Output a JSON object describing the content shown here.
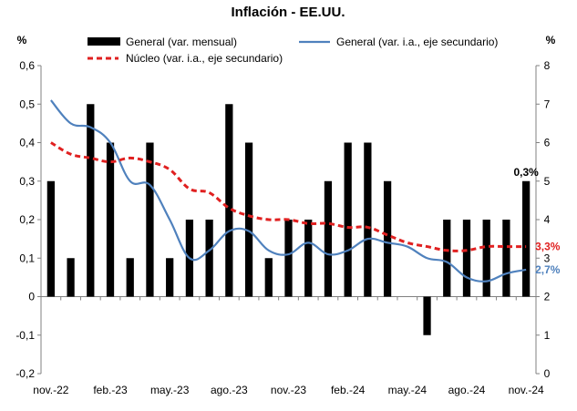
{
  "chart_data": {
    "type": "bar+line",
    "title": "Inflación - EE.UU.",
    "y_left_unit": "%",
    "y_right_unit": "%",
    "y_left_lim": [
      -0.2,
      0.6
    ],
    "y_left_ticks": [
      "0,6",
      "0,5",
      "0,4",
      "0,3",
      "0,2",
      "0,1",
      "0",
      "-0,1",
      "-0,2"
    ],
    "y_right_lim": [
      0,
      8
    ],
    "y_right_ticks": [
      "8",
      "7",
      "6",
      "5",
      "4",
      "3",
      "2",
      "1",
      "0"
    ],
    "x_tick_labels": [
      "nov.-22",
      "feb.-23",
      "may.-23",
      "ago.-23",
      "nov.-23",
      "feb.-24",
      "may.-24",
      "ago.-24",
      "nov.-24"
    ],
    "months": [
      "2022-11",
      "2022-12",
      "2023-01",
      "2023-02",
      "2023-03",
      "2023-04",
      "2023-05",
      "2023-06",
      "2023-07",
      "2023-08",
      "2023-09",
      "2023-10",
      "2023-11",
      "2023-12",
      "2024-01",
      "2024-02",
      "2024-03",
      "2024-04",
      "2024-05",
      "2024-06",
      "2024-07",
      "2024-08",
      "2024-09",
      "2024-10",
      "2024-11"
    ],
    "grid": false,
    "legend_position": "top",
    "series": [
      {
        "name": "General (var. mensual)",
        "type": "bar",
        "axis": "left",
        "color": "#000000",
        "values": [
          0.3,
          0.1,
          0.5,
          0.4,
          0.1,
          0.4,
          0.1,
          0.2,
          0.2,
          0.5,
          0.4,
          0.1,
          0.2,
          0.2,
          0.3,
          0.4,
          0.4,
          0.3,
          0.0,
          -0.1,
          0.2,
          0.2,
          0.2,
          0.2,
          0.3
        ]
      },
      {
        "name": "General (var. i.a., eje secundario)",
        "type": "line",
        "axis": "right",
        "color": "#4f81bd",
        "values": [
          7.1,
          6.5,
          6.4,
          6.0,
          5.0,
          4.9,
          4.0,
          3.0,
          3.2,
          3.7,
          3.7,
          3.2,
          3.1,
          3.4,
          3.1,
          3.2,
          3.5,
          3.4,
          3.3,
          3.0,
          2.9,
          2.5,
          2.4,
          2.6,
          2.7
        ]
      },
      {
        "name": "Núcleo (var. i.a., eje secundario)",
        "type": "line",
        "dashed": true,
        "axis": "right",
        "color": "#e02020",
        "values": [
          6.0,
          5.7,
          5.6,
          5.5,
          5.6,
          5.5,
          5.3,
          4.8,
          4.7,
          4.3,
          4.1,
          4.0,
          4.0,
          3.9,
          3.9,
          3.8,
          3.8,
          3.6,
          3.4,
          3.3,
          3.2,
          3.2,
          3.3,
          3.3,
          3.3
        ]
      }
    ],
    "annotations": [
      {
        "text": "0,3%",
        "series": 0,
        "point": 24,
        "color": "#000000"
      },
      {
        "text": "3,3%",
        "series": 2,
        "point": 24,
        "color": "#e02020"
      },
      {
        "text": "2,7%",
        "series": 1,
        "point": 24,
        "color": "#4f81bd"
      }
    ]
  }
}
